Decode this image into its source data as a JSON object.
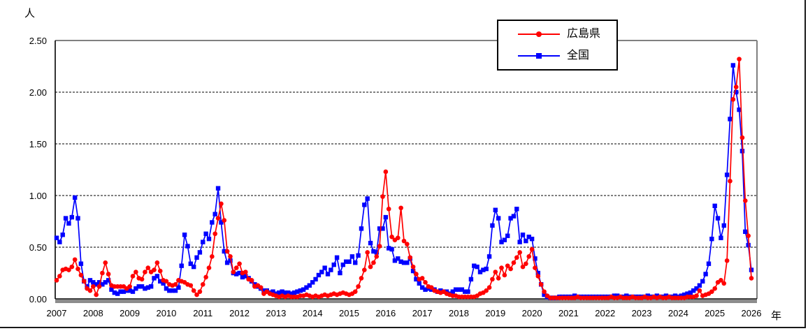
{
  "chart_data": {
    "type": "line",
    "title": "",
    "ylabel": "人",
    "xlabel": "年",
    "ylim": [
      0,
      2.5
    ],
    "ytick_values": [
      0,
      0.5,
      1.0,
      1.5,
      2.0,
      2.5
    ],
    "ytick_labels": [
      "0.00",
      "0.50",
      "1.00",
      "1.50",
      "2.00",
      "2.50"
    ],
    "x_start_year": 2007,
    "x_interval": "monthly",
    "year_tick_labels": [
      "2007",
      "2008",
      "2009",
      "2010",
      "2011",
      "2012",
      "2013",
      "2014",
      "2015",
      "2016",
      "2017",
      "2018",
      "2019",
      "2020",
      "2021",
      "2022",
      "2023",
      "2024",
      "2025",
      "2026"
    ],
    "grid": "horizontal-dashed",
    "legend_position": "top-center",
    "series": [
      {
        "name": "広島県",
        "color": "#ff0000",
        "marker": "circle",
        "values": [
          0.18,
          0.22,
          0.28,
          0.29,
          0.28,
          0.31,
          0.38,
          0.29,
          0.23,
          0.17,
          0.1,
          0.08,
          0.12,
          0.04,
          0.12,
          0.25,
          0.35,
          0.24,
          0.13,
          0.12,
          0.12,
          0.12,
          0.12,
          0.1,
          0.12,
          0.22,
          0.26,
          0.2,
          0.19,
          0.26,
          0.3,
          0.26,
          0.28,
          0.35,
          0.27,
          0.18,
          0.17,
          0.14,
          0.13,
          0.14,
          0.18,
          0.17,
          0.16,
          0.14,
          0.13,
          0.08,
          0.04,
          0.07,
          0.14,
          0.21,
          0.3,
          0.41,
          0.63,
          0.78,
          0.92,
          0.76,
          0.46,
          0.41,
          0.26,
          0.3,
          0.34,
          0.25,
          0.26,
          0.19,
          0.18,
          0.12,
          0.13,
          0.11,
          0.05,
          0.07,
          0.05,
          0.04,
          0.03,
          0.02,
          0.03,
          0.02,
          0.03,
          0.02,
          0.02,
          0.02,
          0.03,
          0.03,
          0.04,
          0.03,
          0.02,
          0.03,
          0.02,
          0.03,
          0.04,
          0.03,
          0.04,
          0.05,
          0.04,
          0.05,
          0.06,
          0.05,
          0.04,
          0.05,
          0.07,
          0.12,
          0.2,
          0.28,
          0.45,
          0.31,
          0.35,
          0.41,
          0.51,
          0.99,
          1.23,
          0.87,
          0.6,
          0.57,
          0.59,
          0.88,
          0.56,
          0.53,
          0.4,
          0.31,
          0.24,
          0.19,
          0.2,
          0.16,
          0.12,
          0.11,
          0.08,
          0.07,
          0.06,
          0.07,
          0.05,
          0.04,
          0.03,
          0.03,
          0.02,
          0.02,
          0.02,
          0.02,
          0.02,
          0.02,
          0.03,
          0.05,
          0.06,
          0.08,
          0.11,
          0.19,
          0.26,
          0.2,
          0.3,
          0.23,
          0.32,
          0.29,
          0.35,
          0.4,
          0.45,
          0.31,
          0.34,
          0.41,
          0.48,
          0.3,
          0.22,
          0.14,
          0.07,
          0.03,
          0.01,
          0.01,
          0.01,
          0.01,
          0.01,
          0.01,
          0.01,
          0.01,
          0.01,
          0.02,
          0.01,
          0.01,
          0.01,
          0.01,
          0.01,
          0.01,
          0.01,
          0.01,
          0.01,
          0.01,
          0.02,
          0.01,
          0.01,
          0.02,
          0.01,
          0.01,
          0.01,
          0.02,
          0.01,
          0.01,
          0.01,
          0.02,
          0.01,
          0.01,
          0.02,
          0.01,
          0.02,
          0.01,
          0.01,
          0.02,
          0.01,
          0.01,
          0.01,
          0.01,
          0.01,
          0.02,
          0.02,
          0.02,
          0.03,
          0.08,
          0.03,
          0.04,
          0.05,
          0.07,
          0.1,
          0.16,
          0.18,
          0.15,
          0.37,
          1.14,
          1.93,
          2.05,
          2.32,
          1.56,
          0.95,
          0.61,
          0.2
        ]
      },
      {
        "name": "全国",
        "color": "#0000ff",
        "marker": "square",
        "values": [
          0.59,
          0.55,
          0.62,
          0.78,
          0.73,
          0.79,
          0.98,
          0.78,
          0.34,
          0.17,
          0.12,
          0.18,
          0.16,
          0.14,
          0.16,
          0.14,
          0.16,
          0.18,
          0.09,
          0.06,
          0.05,
          0.07,
          0.07,
          0.08,
          0.08,
          0.07,
          0.1,
          0.12,
          0.12,
          0.1,
          0.11,
          0.12,
          0.2,
          0.22,
          0.17,
          0.15,
          0.1,
          0.08,
          0.08,
          0.08,
          0.11,
          0.32,
          0.62,
          0.51,
          0.34,
          0.31,
          0.4,
          0.45,
          0.55,
          0.63,
          0.58,
          0.74,
          0.82,
          1.07,
          0.74,
          0.46,
          0.35,
          0.37,
          0.25,
          0.24,
          0.25,
          0.21,
          0.22,
          0.2,
          0.17,
          0.14,
          0.12,
          0.1,
          0.08,
          0.08,
          0.06,
          0.07,
          0.05,
          0.06,
          0.07,
          0.06,
          0.06,
          0.05,
          0.06,
          0.07,
          0.08,
          0.09,
          0.11,
          0.13,
          0.16,
          0.19,
          0.23,
          0.26,
          0.3,
          0.24,
          0.28,
          0.33,
          0.4,
          0.25,
          0.33,
          0.36,
          0.36,
          0.41,
          0.35,
          0.42,
          0.68,
          0.91,
          0.97,
          0.54,
          0.46,
          0.45,
          0.68,
          0.68,
          0.79,
          0.49,
          0.48,
          0.37,
          0.39,
          0.36,
          0.35,
          0.35,
          0.39,
          0.27,
          0.19,
          0.15,
          0.11,
          0.09,
          0.1,
          0.09,
          0.09,
          0.07,
          0.08,
          0.07,
          0.07,
          0.05,
          0.07,
          0.09,
          0.09,
          0.09,
          0.07,
          0.07,
          0.19,
          0.32,
          0.31,
          0.26,
          0.28,
          0.29,
          0.41,
          0.71,
          0.86,
          0.78,
          0.55,
          0.57,
          0.61,
          0.78,
          0.8,
          0.87,
          0.55,
          0.62,
          0.56,
          0.6,
          0.58,
          0.39,
          0.25,
          0.14,
          0.04,
          0.02,
          0.01,
          0.01,
          0.01,
          0.02,
          0.02,
          0.02,
          0.02,
          0.02,
          0.03,
          0.02,
          0.02,
          0.02,
          0.02,
          0.02,
          0.02,
          0.02,
          0.02,
          0.02,
          0.02,
          0.02,
          0.02,
          0.03,
          0.03,
          0.02,
          0.02,
          0.03,
          0.02,
          0.02,
          0.02,
          0.02,
          0.02,
          0.02,
          0.03,
          0.02,
          0.02,
          0.03,
          0.02,
          0.02,
          0.03,
          0.02,
          0.02,
          0.03,
          0.02,
          0.03,
          0.04,
          0.05,
          0.06,
          0.08,
          0.1,
          0.13,
          0.17,
          0.24,
          0.34,
          0.58,
          0.9,
          0.78,
          0.59,
          0.71,
          1.2,
          1.74,
          2.26,
          2.0,
          1.83,
          1.43,
          0.65,
          0.52,
          0.28
        ]
      }
    ],
    "colors": {
      "hiroshima": "#ff0000",
      "zenkoku": "#0000ff",
      "plot_border": "#808080",
      "axis": "#000000"
    }
  }
}
